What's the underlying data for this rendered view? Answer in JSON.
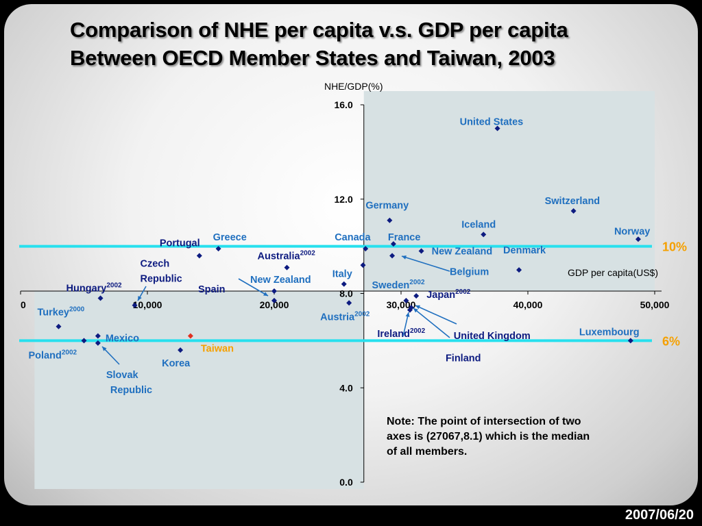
{
  "slide": {
    "title_line1": "Comparison of NHE per capita v.s. GDP per capita",
    "title_line2": "Between OECD Member States and Taiwan, 2003",
    "date": "2007/06/20"
  },
  "colors": {
    "point": "#0d1b80",
    "label": "#1f6fbf",
    "taiwan_point": "#e03020",
    "taiwan_label": "#f5a000",
    "ref_line": "#27e0ee",
    "quadrant": "#d7e1e3"
  },
  "chart_data": {
    "type": "scatter",
    "xlabel": "GDP per capita(US$)",
    "ylabel": "NHE/GDP(%)",
    "xlim": [
      0,
      50000
    ],
    "ylim": [
      0,
      16
    ],
    "xticks": [
      0,
      10000,
      20000,
      30000,
      40000,
      50000
    ],
    "xtick_labels": [
      "0",
      "10,000",
      "20,000",
      "30,000",
      "40,000",
      "50,000"
    ],
    "yticks": [
      0,
      4,
      8,
      12,
      16
    ],
    "ytick_labels": [
      "0.0",
      "4.0",
      "8.0",
      "12.0",
      "16.0"
    ],
    "axes_intersection": [
      27067,
      8.1
    ],
    "reference_lines": [
      {
        "y": 10,
        "label": "10%"
      },
      {
        "y": 6,
        "label": "6%"
      }
    ],
    "note": "Note: The point of intersection of two axes is (27067,8.1) which is the median of all members.",
    "points": [
      {
        "name": "United States",
        "sup": "",
        "x": 37600,
        "y": 15.0
      },
      {
        "name": "Switzerland",
        "sup": "",
        "x": 43600,
        "y": 11.5
      },
      {
        "name": "Germany",
        "sup": "",
        "x": 29100,
        "y": 11.1
      },
      {
        "name": "Iceland",
        "sup": "",
        "x": 36500,
        "y": 10.5
      },
      {
        "name": "Norway",
        "sup": "",
        "x": 48700,
        "y": 10.3
      },
      {
        "name": "France",
        "sup": "",
        "x": 29400,
        "y": 10.1
      },
      {
        "name": "Canada",
        "sup": "",
        "x": 27200,
        "y": 9.9
      },
      {
        "name": "New Zealand",
        "sup": "",
        "x": 31600,
        "y": 9.8
      },
      {
        "name": "Belgium",
        "sup": "",
        "x": 29300,
        "y": 9.6
      },
      {
        "name": "Greece",
        "sup": "",
        "x": 15600,
        "y": 9.9
      },
      {
        "name": "Portugal",
        "sup": "",
        "x": 14100,
        "y": 9.6
      },
      {
        "name": "Australia",
        "sup": "2002",
        "x": 21000,
        "y": 9.1
      },
      {
        "name": "Denmark",
        "sup": "",
        "x": 39300,
        "y": 9.0
      },
      {
        "name": "Italy",
        "sup": "",
        "x": 25500,
        "y": 8.4
      },
      {
        "name": "Sweden",
        "sup": "2002",
        "x": 27000,
        "y": 9.2
      },
      {
        "name": "New Zealand",
        "sup": "",
        "x": 20000,
        "y": 8.1
      },
      {
        "name": "Spain",
        "sup": "",
        "x": 20000,
        "y": 7.7
      },
      {
        "name": "Hungary",
        "sup": "2002",
        "x": 6300,
        "y": 7.8
      },
      {
        "name": "Czech Republic",
        "sup": "",
        "x": 9000,
        "y": 7.5
      },
      {
        "name": "Austria",
        "sup": "2002",
        "x": 25900,
        "y": 7.6
      },
      {
        "name": "Japan",
        "sup": "2002",
        "x": 31200,
        "y": 7.9
      },
      {
        "name": "Ireland",
        "sup": "2002",
        "x": 30400,
        "y": 7.7
      },
      {
        "name": "United Kingdom",
        "sup": "",
        "x": 30800,
        "y": 7.4
      },
      {
        "name": "Finland",
        "sup": "",
        "x": 30700,
        "y": 7.3
      },
      {
        "name": "Turkey",
        "sup": "2000",
        "x": 3000,
        "y": 6.6
      },
      {
        "name": "Mexico",
        "sup": "",
        "x": 6100,
        "y": 6.2
      },
      {
        "name": "Poland",
        "sup": "2002",
        "x": 5000,
        "y": 6.0
      },
      {
        "name": "Slovak Republic",
        "sup": "",
        "x": 6100,
        "y": 5.9
      },
      {
        "name": "Taiwan",
        "sup": "",
        "x": 13400,
        "y": 6.2
      },
      {
        "name": "Korea",
        "sup": "",
        "x": 12600,
        "y": 5.6
      },
      {
        "name": "Luxembourg",
        "sup": "",
        "x": 48100,
        "y": 6.0
      }
    ]
  }
}
